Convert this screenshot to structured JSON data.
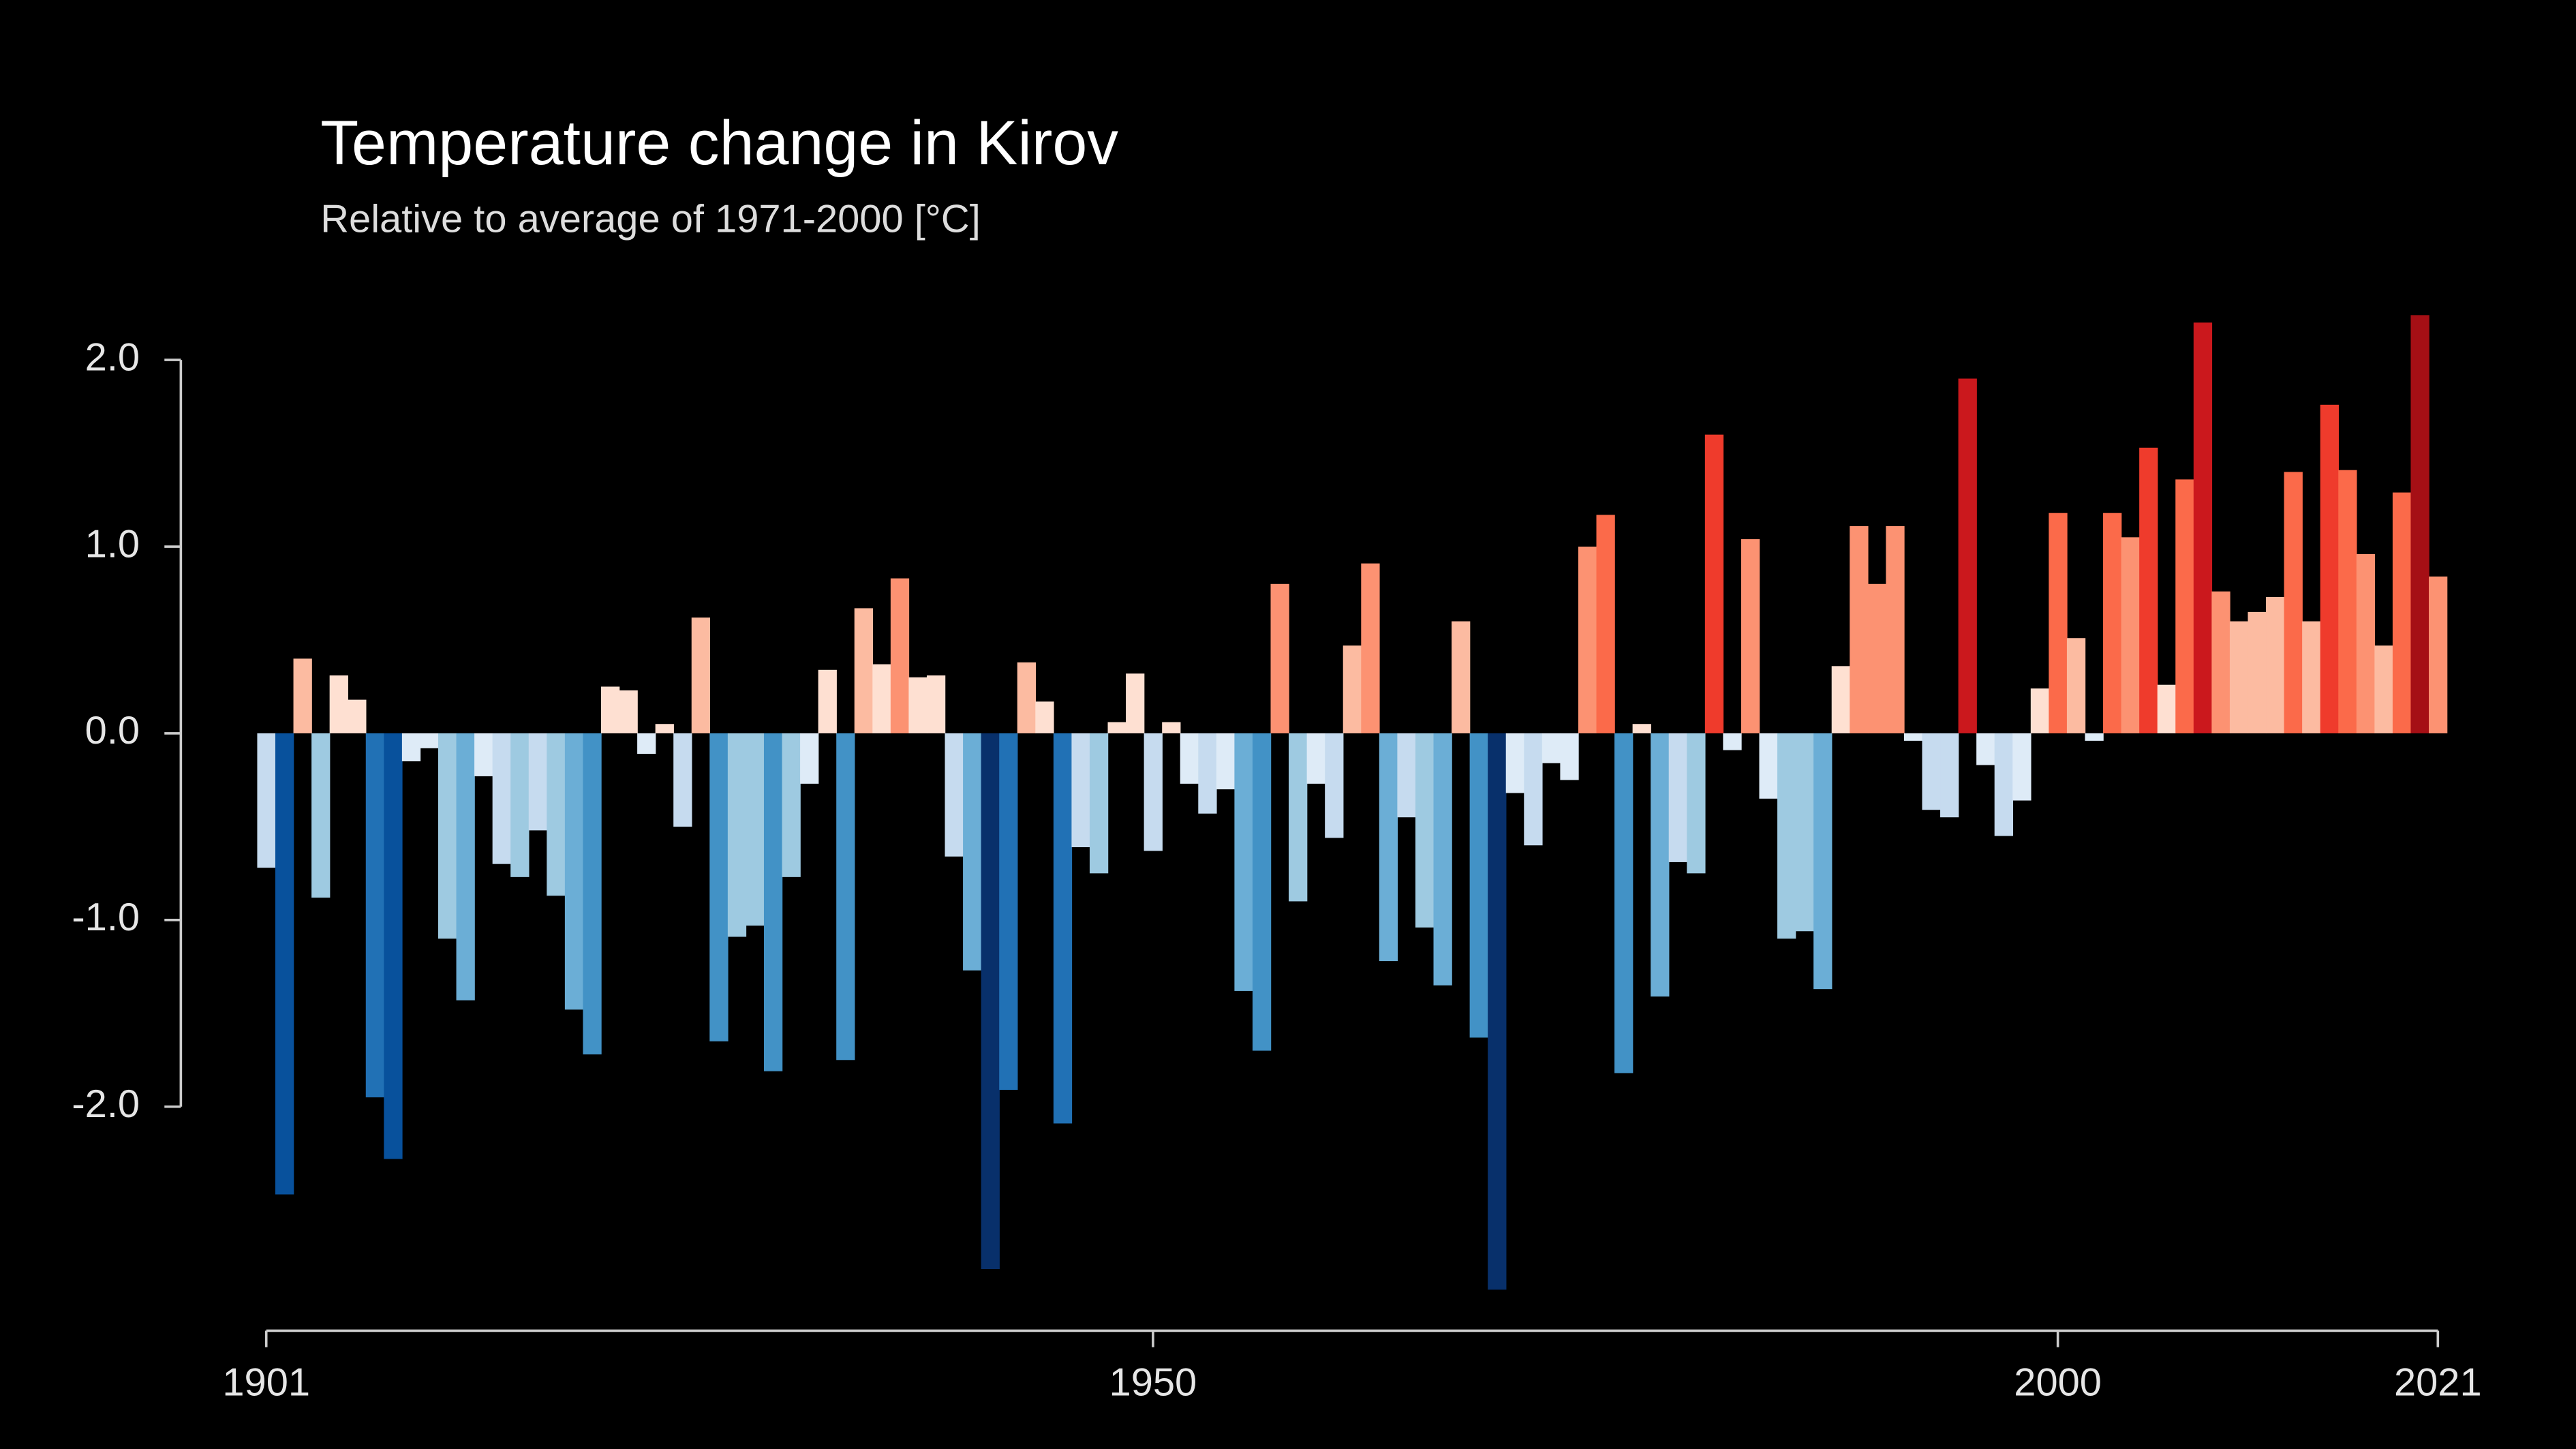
{
  "chart_data": {
    "type": "bar",
    "title": "Temperature change in Kirov",
    "subtitle": "Relative to average of 1971-2000  [°C]",
    "x": [
      1901,
      1902,
      1903,
      1904,
      1905,
      1906,
      1907,
      1908,
      1909,
      1910,
      1911,
      1912,
      1913,
      1914,
      1915,
      1916,
      1917,
      1918,
      1919,
      1920,
      1921,
      1922,
      1923,
      1924,
      1925,
      1926,
      1927,
      1928,
      1929,
      1930,
      1931,
      1932,
      1933,
      1934,
      1935,
      1936,
      1937,
      1938,
      1939,
      1940,
      1941,
      1942,
      1943,
      1944,
      1945,
      1946,
      1947,
      1948,
      1949,
      1950,
      1951,
      1952,
      1953,
      1954,
      1955,
      1956,
      1957,
      1958,
      1959,
      1960,
      1961,
      1962,
      1963,
      1964,
      1965,
      1966,
      1967,
      1968,
      1969,
      1970,
      1971,
      1972,
      1973,
      1974,
      1975,
      1976,
      1977,
      1978,
      1979,
      1980,
      1981,
      1982,
      1983,
      1984,
      1985,
      1986,
      1987,
      1988,
      1989,
      1990,
      1991,
      1992,
      1993,
      1994,
      1995,
      1996,
      1997,
      1998,
      1999,
      2000,
      2001,
      2002,
      2003,
      2004,
      2005,
      2006,
      2007,
      2008,
      2009,
      2010,
      2011,
      2012,
      2013,
      2014,
      2015,
      2016,
      2017,
      2018,
      2019,
      2020,
      2021
    ],
    "values": [
      -0.72,
      -2.47,
      0.4,
      -0.88,
      0.31,
      0.18,
      -1.95,
      -2.28,
      -0.15,
      -0.08,
      -1.1,
      -1.43,
      -0.23,
      -0.7,
      -0.77,
      -0.52,
      -0.87,
      -1.48,
      -1.72,
      0.25,
      0.23,
      -0.11,
      0.05,
      -0.5,
      0.62,
      -1.65,
      -1.09,
      -1.03,
      -1.81,
      -0.77,
      -0.27,
      0.34,
      -1.75,
      0.67,
      0.37,
      0.83,
      0.3,
      0.31,
      -0.66,
      -1.27,
      -2.87,
      -1.91,
      0.38,
      0.17,
      -2.09,
      -0.61,
      -0.75,
      0.06,
      0.32,
      -0.63,
      0.06,
      -0.27,
      -0.43,
      -0.3,
      -1.38,
      -1.7,
      0.8,
      -0.9,
      -0.27,
      -0.56,
      0.47,
      0.91,
      -1.22,
      -0.45,
      -1.04,
      -1.35,
      0.6,
      -1.63,
      -2.98,
      -0.32,
      -0.6,
      -0.16,
      -0.25,
      1.0,
      1.17,
      -1.82,
      0.05,
      -1.41,
      -0.69,
      -0.75,
      1.6,
      -0.09,
      1.04,
      -0.35,
      -1.1,
      -1.06,
      -1.37,
      0.36,
      1.11,
      0.8,
      1.11,
      -0.04,
      -0.41,
      -0.45,
      1.9,
      -0.17,
      -0.55,
      -0.36,
      0.24,
      1.18,
      0.51,
      -0.04,
      1.18,
      1.05,
      1.53,
      0.26,
      1.36,
      2.2,
      0.76,
      0.6,
      0.65,
      0.73,
      1.4,
      0.6,
      1.76,
      1.41,
      0.96,
      0.47,
      1.29,
      2.24,
      0.84
    ],
    "colors": [
      "#08306b",
      "#08519c",
      "#2171b5",
      "#4292c6",
      "#6baed6",
      "#9ecae1",
      "#c6dbef",
      "#deebf7",
      "#fee0d2",
      "#fcbba1",
      "#fc9272",
      "#fb6a4a",
      "#ef3b2c",
      "#cb181d",
      "#a50f15",
      "#67000d"
    ],
    "xlim": [
      1901,
      2021
    ],
    "xticks": [
      1901,
      1950,
      2000,
      2021
    ],
    "ylim": [
      -3.2,
      2.3
    ],
    "yticks": [
      {
        "value": 2,
        "label": "2.0"
      },
      {
        "value": 1,
        "label": "1.0"
      },
      {
        "value": 0,
        "label": "0.0"
      },
      {
        "value": -1,
        "label": "-1.0"
      },
      {
        "value": -2,
        "label": "-2.0"
      }
    ]
  }
}
